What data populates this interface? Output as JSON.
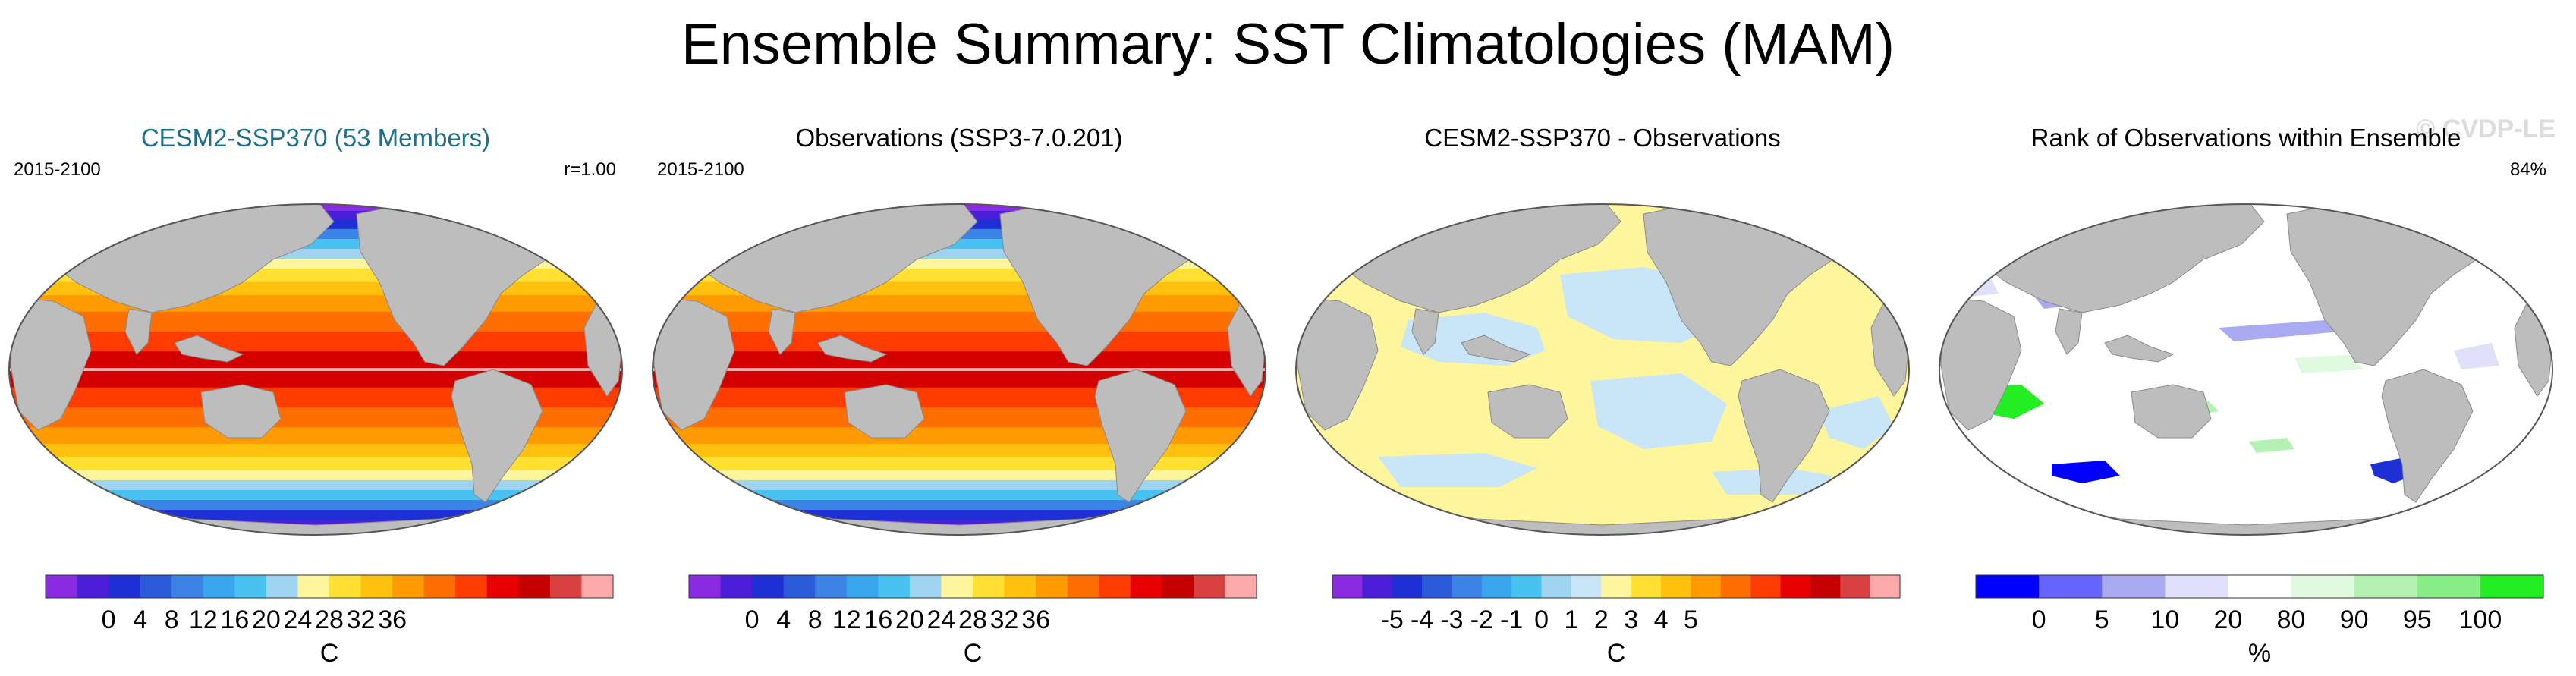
{
  "title": "Ensemble Summary: SST Climatologies (MAM)",
  "watermark": "© CVDP-LE",
  "chart_data": [
    {
      "type": "heatmap",
      "title": "CESM2-SSP370 (53 Members)",
      "left_label": "2015-2100",
      "right_label": "r=1.00",
      "map_style": "climatology",
      "colorbar": {
        "colors": [
          "#8a2be2",
          "#4b1fd8",
          "#1f2fd6",
          "#2b5bd8",
          "#3b84e6",
          "#3aa6ee",
          "#48c2f0",
          "#9fd4f0",
          "#fff59d",
          "#ffe033",
          "#ffc10d",
          "#ff9a00",
          "#ff6f00",
          "#ff3c00",
          "#e60000",
          "#c40000",
          "#d94040",
          "#ffaaaa"
        ],
        "ticks": [
          "0",
          "4",
          "8",
          "12",
          "16",
          "20",
          "24",
          "28",
          "32",
          "36"
        ],
        "unit": "C"
      }
    },
    {
      "type": "heatmap",
      "title": "Observations (SSP3-7.0.201)",
      "left_label": "2015-2100",
      "right_label": "",
      "map_style": "climatology",
      "colorbar": {
        "colors": [
          "#8a2be2",
          "#4b1fd8",
          "#1f2fd6",
          "#2b5bd8",
          "#3b84e6",
          "#3aa6ee",
          "#48c2f0",
          "#9fd4f0",
          "#fff59d",
          "#ffe033",
          "#ffc10d",
          "#ff9a00",
          "#ff6f00",
          "#ff3c00",
          "#e60000",
          "#c40000",
          "#d94040",
          "#ffaaaa"
        ],
        "ticks": [
          "0",
          "4",
          "8",
          "12",
          "16",
          "20",
          "24",
          "28",
          "32",
          "36"
        ],
        "unit": "C"
      }
    },
    {
      "type": "heatmap",
      "title": "CESM2-SSP370 - Observations",
      "left_label": "",
      "right_label": "",
      "map_style": "difference",
      "colorbar": {
        "colors": [
          "#8a2be2",
          "#4b1fd8",
          "#1f2fd6",
          "#2b5bd8",
          "#3b84e6",
          "#3aa6ee",
          "#48c2f0",
          "#9fd4f0",
          "#c8e6f7",
          "#fff59d",
          "#ffe033",
          "#ffc10d",
          "#ff9a00",
          "#ff6f00",
          "#ff3c00",
          "#e60000",
          "#c40000",
          "#d94040",
          "#ffaaaa"
        ],
        "ticks": [
          "-5",
          "-4",
          "-3",
          "-2",
          "-1",
          "0",
          "1",
          "2",
          "3",
          "4",
          "5"
        ],
        "unit": "C"
      }
    },
    {
      "type": "heatmap",
      "title": "Rank of Observations within Ensemble",
      "left_label": "",
      "right_label": "84%",
      "map_style": "rank",
      "colorbar": {
        "colors": [
          "#0000ff",
          "#6666ff",
          "#aaaaf2",
          "#e0e0fa",
          "#ffffff",
          "#e0fae0",
          "#b4f2b4",
          "#88ee88",
          "#22ee22"
        ],
        "ticks": [
          "0",
          "5",
          "10",
          "20",
          "80",
          "90",
          "95",
          "100"
        ],
        "unit": "%"
      }
    }
  ]
}
